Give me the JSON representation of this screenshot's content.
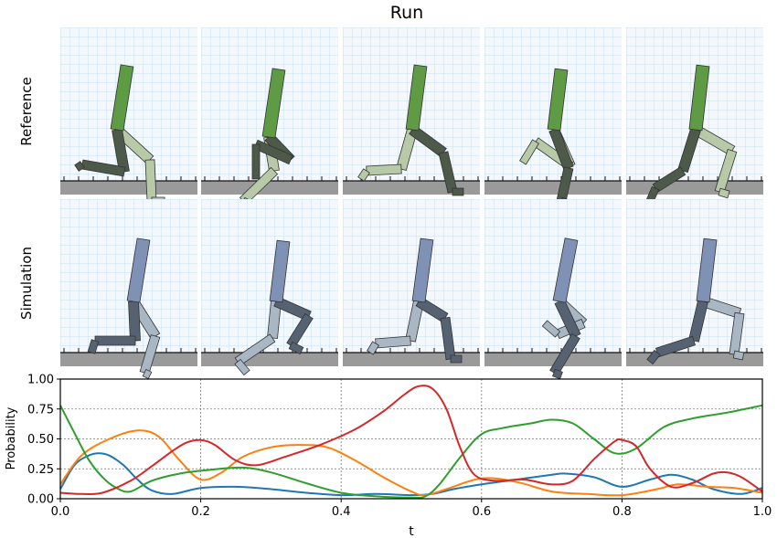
{
  "figure": {
    "title": "Run",
    "row_labels": [
      "Reference",
      "Simulation"
    ]
  },
  "palette": {
    "reference_torso": "#5f9a45",
    "reference_near": "#4d5a4a",
    "reference_far": "#b8c9a8",
    "simulation_torso": "#7f92b5",
    "simulation_near": "#566272",
    "simulation_far": "#a9b7c4",
    "ground": "#9a9a9a",
    "grid": "#b7d7ea",
    "panel_bg": "#f4f8fc"
  },
  "chart_data": {
    "type": "line",
    "title": "",
    "xlabel": "t",
    "ylabel": "Probability",
    "xlim": [
      0.0,
      1.0
    ],
    "ylim": [
      0.0,
      1.0
    ],
    "xticks": [
      "0.0",
      "0.2",
      "0.4",
      "0.6",
      "0.8",
      "1.0"
    ],
    "yticks": [
      "0.00",
      "0.25",
      "0.50",
      "0.75",
      "1.00"
    ],
    "grid": true,
    "series": [
      {
        "color": "#1f77b4",
        "x": [
          0.0,
          0.02,
          0.04,
          0.055,
          0.07,
          0.09,
          0.11,
          0.13,
          0.16,
          0.2,
          0.25,
          0.3,
          0.35,
          0.4,
          0.45,
          0.5,
          0.53,
          0.56,
          0.6,
          0.65,
          0.7,
          0.72,
          0.76,
          0.8,
          0.84,
          0.87,
          0.9,
          0.93,
          0.97,
          1.0
        ],
        "y": [
          0.08,
          0.28,
          0.36,
          0.38,
          0.36,
          0.28,
          0.16,
          0.07,
          0.04,
          0.09,
          0.1,
          0.08,
          0.05,
          0.03,
          0.04,
          0.03,
          0.04,
          0.08,
          0.12,
          0.16,
          0.2,
          0.21,
          0.18,
          0.1,
          0.16,
          0.2,
          0.16,
          0.08,
          0.04,
          0.09
        ]
      },
      {
        "color": "#ff7f0e",
        "x": [
          0.0,
          0.03,
          0.07,
          0.11,
          0.14,
          0.17,
          0.2,
          0.23,
          0.26,
          0.3,
          0.34,
          0.38,
          0.42,
          0.46,
          0.5,
          0.52,
          0.55,
          0.6,
          0.65,
          0.7,
          0.75,
          0.8,
          0.85,
          0.88,
          0.92,
          0.96,
          1.0
        ],
        "y": [
          0.12,
          0.36,
          0.5,
          0.57,
          0.52,
          0.32,
          0.16,
          0.22,
          0.35,
          0.43,
          0.45,
          0.43,
          0.32,
          0.18,
          0.06,
          0.03,
          0.08,
          0.17,
          0.14,
          0.06,
          0.04,
          0.03,
          0.08,
          0.12,
          0.1,
          0.09,
          0.05
        ]
      },
      {
        "color": "#2ca02c",
        "x": [
          0.0,
          0.02,
          0.04,
          0.06,
          0.08,
          0.1,
          0.13,
          0.17,
          0.21,
          0.26,
          0.3,
          0.35,
          0.4,
          0.45,
          0.5,
          0.52,
          0.54,
          0.57,
          0.6,
          0.63,
          0.67,
          0.7,
          0.73,
          0.76,
          0.79,
          0.82,
          0.86,
          0.9,
          0.95,
          1.0
        ],
        "y": [
          0.78,
          0.55,
          0.33,
          0.18,
          0.09,
          0.06,
          0.15,
          0.21,
          0.24,
          0.26,
          0.22,
          0.13,
          0.05,
          0.02,
          0.01,
          0.02,
          0.12,
          0.35,
          0.54,
          0.59,
          0.63,
          0.66,
          0.63,
          0.5,
          0.38,
          0.42,
          0.6,
          0.67,
          0.72,
          0.78
        ]
      },
      {
        "color": "#d62728",
        "x": [
          0.0,
          0.03,
          0.06,
          0.1,
          0.13,
          0.16,
          0.18,
          0.2,
          0.22,
          0.25,
          0.28,
          0.32,
          0.37,
          0.42,
          0.46,
          0.49,
          0.51,
          0.53,
          0.55,
          0.57,
          0.59,
          0.62,
          0.66,
          0.7,
          0.73,
          0.76,
          0.79,
          0.8,
          0.82,
          0.84,
          0.87,
          0.9,
          0.93,
          0.95,
          0.97,
          1.0
        ],
        "y": [
          0.05,
          0.04,
          0.05,
          0.15,
          0.27,
          0.4,
          0.47,
          0.49,
          0.45,
          0.32,
          0.28,
          0.35,
          0.45,
          0.58,
          0.73,
          0.87,
          0.94,
          0.92,
          0.75,
          0.42,
          0.2,
          0.15,
          0.16,
          0.12,
          0.15,
          0.33,
          0.48,
          0.49,
          0.44,
          0.25,
          0.1,
          0.13,
          0.21,
          0.22,
          0.18,
          0.06
        ]
      }
    ]
  }
}
